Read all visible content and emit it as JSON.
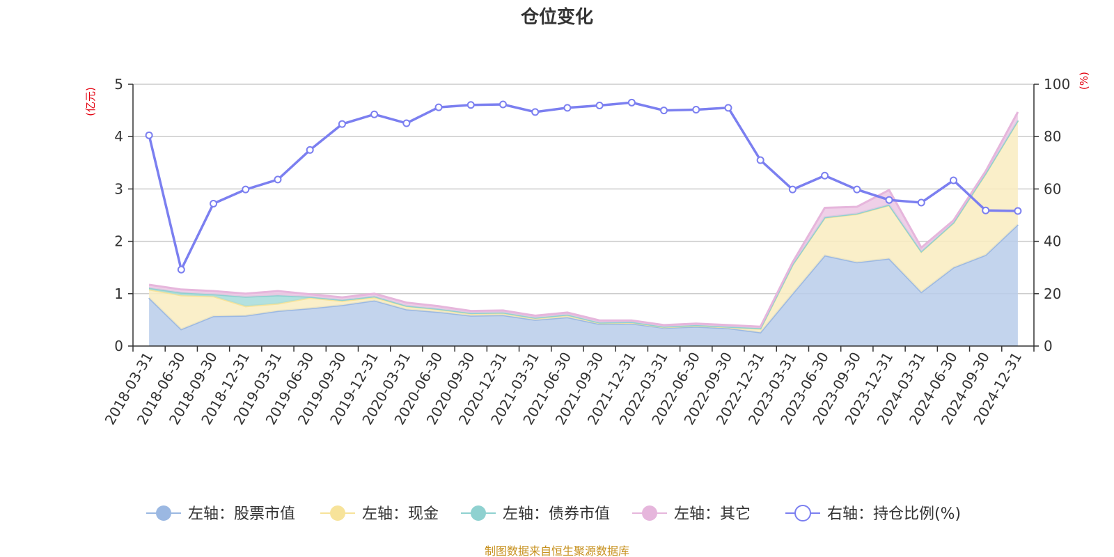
{
  "chart_data": {
    "type": "area",
    "title": "仓位变化",
    "y_left_unit": "(亿元)",
    "y_right_unit": "(%)",
    "y_left_ticks": [
      "0",
      "1",
      "2",
      "3",
      "4",
      "5"
    ],
    "y_right_ticks": [
      "0",
      "20",
      "40",
      "60",
      "80",
      "100"
    ],
    "ylim_left": [
      0,
      5
    ],
    "ylim_right": [
      0,
      100
    ],
    "grid": true,
    "legend_position": "bottom",
    "categories": [
      "2018-03-31",
      "2018-06-30",
      "2018-09-30",
      "2018-12-31",
      "2019-03-31",
      "2019-06-30",
      "2019-09-30",
      "2019-12-31",
      "2020-03-31",
      "2020-06-30",
      "2020-09-30",
      "2020-12-31",
      "2021-03-31",
      "2021-06-30",
      "2021-09-30",
      "2021-12-31",
      "2022-03-31",
      "2022-06-30",
      "2022-09-30",
      "2022-12-31",
      "2023-03-31",
      "2023-06-30",
      "2023-09-30",
      "2023-12-31",
      "2024-03-31",
      "2024-06-30",
      "2024-09-30",
      "2024-12-31"
    ],
    "stack_series": [
      {
        "name": "左轴：股票市值",
        "axis": "left",
        "color": "#9bb8e2",
        "fill": "#b8cdea",
        "values": [
          0.92,
          0.32,
          0.57,
          0.58,
          0.67,
          0.72,
          0.78,
          0.87,
          0.7,
          0.65,
          0.58,
          0.59,
          0.5,
          0.55,
          0.42,
          0.43,
          0.35,
          0.37,
          0.34,
          0.26,
          1.0,
          1.73,
          1.6,
          1.67,
          1.03,
          1.5,
          1.74,
          2.32
        ]
      },
      {
        "name": "左轴：现金",
        "axis": "left",
        "color": "#f7e39a",
        "fill": "#f9ecc0",
        "values": [
          0.16,
          0.65,
          0.38,
          0.18,
          0.14,
          0.2,
          0.08,
          0.06,
          0.06,
          0.05,
          0.04,
          0.04,
          0.03,
          0.04,
          0.02,
          0.02,
          0.01,
          0.02,
          0.02,
          0.07,
          0.55,
          0.72,
          0.92,
          1.02,
          0.77,
          0.85,
          1.55,
          1.98
        ]
      },
      {
        "name": "左轴：债券市值",
        "axis": "left",
        "color": "#8fd1d0",
        "fill": "#a6dcdb",
        "values": [
          0.03,
          0.05,
          0.04,
          0.18,
          0.16,
          0.02,
          0.02,
          0.02,
          0.01,
          0.01,
          0.01,
          0.01,
          0.01,
          0.01,
          0.01,
          0.01,
          0.01,
          0.01,
          0.01,
          0.01,
          0.01,
          0.01,
          0.01,
          0.01,
          0.01,
          0.01,
          0.01,
          0.01
        ]
      },
      {
        "name": "左轴：其它",
        "axis": "left",
        "color": "#e6b6dc",
        "fill": "#ecc8e4",
        "values": [
          0.06,
          0.06,
          0.06,
          0.06,
          0.08,
          0.05,
          0.05,
          0.05,
          0.06,
          0.05,
          0.04,
          0.04,
          0.04,
          0.04,
          0.04,
          0.03,
          0.03,
          0.03,
          0.03,
          0.03,
          0.04,
          0.18,
          0.13,
          0.28,
          0.07,
          0.04,
          0.04,
          0.16
        ]
      }
    ],
    "line_series": {
      "name": "右轴：持仓比例(%)",
      "axis": "right",
      "color": "#7b7ff0",
      "values": [
        80.5,
        29.2,
        54.4,
        59.8,
        63.6,
        74.9,
        84.8,
        88.5,
        85.1,
        91.2,
        92.1,
        92.3,
        89.4,
        91.0,
        91.9,
        93.0,
        90.0,
        90.3,
        91.0,
        71.0,
        59.8,
        65.1,
        59.8,
        55.8,
        54.8,
        63.3,
        51.8,
        51.6
      ]
    },
    "source_note": "制图数据来自恒生聚源数据库"
  }
}
